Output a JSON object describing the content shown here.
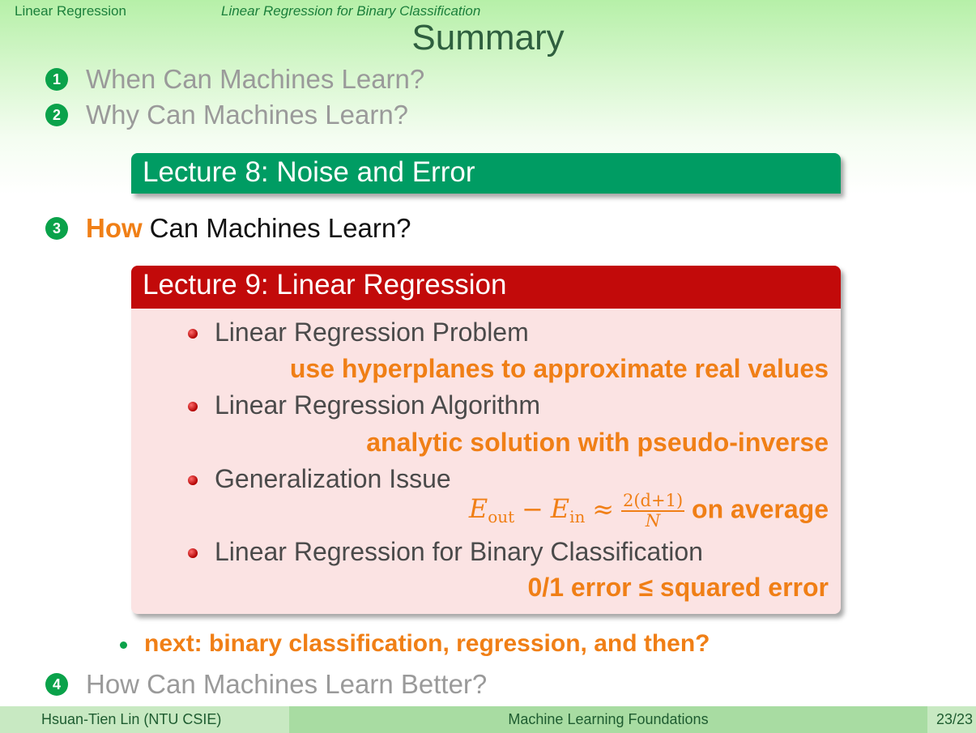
{
  "header": {
    "section": "Linear Regression",
    "subsection": "Linear Regression for Binary Classification",
    "title": "Summary"
  },
  "toc": [
    {
      "number": "1",
      "text": "When Can Machines Learn?"
    },
    {
      "number": "2",
      "text": "Why Can Machines Learn?"
    },
    {
      "number": "3",
      "emphasis": "How",
      "text": "Can Machines Learn?"
    },
    {
      "number": "4",
      "text": "How Can Machines Learn Better?"
    }
  ],
  "lecture8": {
    "title": "Lecture 8: Noise and Error"
  },
  "lecture9": {
    "title": "Lecture 9: Linear Regression",
    "items": [
      {
        "label": "Linear Regression Problem",
        "note": "use hyperplanes to approximate real values"
      },
      {
        "label": "Linear Regression Algorithm",
        "note": "analytic solution with pseudo-inverse"
      },
      {
        "label": "Generalization Issue",
        "note_math": {
          "e_out": "E",
          "out_sub": "out",
          "minus": "−",
          "e_in": "E",
          "in_sub": "in",
          "approx": "≈",
          "numerator": "2(d+1)",
          "denominator": "N",
          "suffix": "on average"
        }
      },
      {
        "label": "Linear Regression for Binary Classification",
        "note": "0/1 error ≤ squared error"
      }
    ]
  },
  "next": "next: binary classification, regression, and then?",
  "footer": {
    "author": "Hsuan-Tien Lin  (NTU CSIE)",
    "course": "Machine Learning Foundations",
    "page": "23/23"
  },
  "colors": {
    "green": "#009c63",
    "red": "#c20a0a",
    "orange": "#f07f16"
  }
}
